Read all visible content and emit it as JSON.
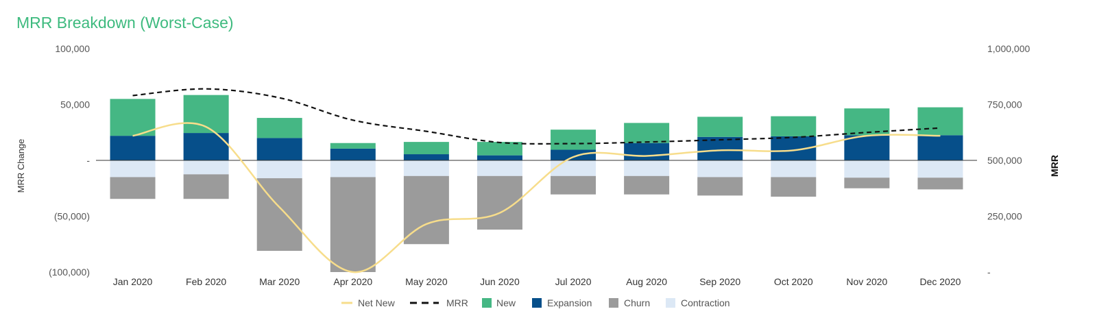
{
  "colors": {
    "title": "#3dba7e",
    "new": "#45b784",
    "expansion": "#064f8a",
    "churn": "#9b9b9b",
    "contraction": "#dce8f5",
    "net_new": "#f7dd8b",
    "mrr": "#111111",
    "axis_text": "#555555"
  },
  "chart_data": {
    "type": "bar",
    "title": "MRR Breakdown (Worst-Case)",
    "ylabel": "MRR Change",
    "y2label": "MRR",
    "ylim": [
      -100000,
      100000
    ],
    "y2lim": [
      0,
      1000000
    ],
    "y_ticks": [
      100000,
      50000,
      0,
      -50000,
      -100000
    ],
    "y_tick_labels": [
      "100,000",
      "50,000",
      "-",
      "(50,000)",
      "(100,000)"
    ],
    "y2_ticks": [
      1000000,
      750000,
      500000,
      250000,
      0
    ],
    "y2_tick_labels": [
      "1,000,000",
      "750,000",
      "500,000",
      "250,000",
      "-"
    ],
    "categories": [
      "Jan 2020",
      "Feb 2020",
      "Mar 2020",
      "Apr 2020",
      "May 2020",
      "Jun 2020",
      "Jul 2020",
      "Aug 2020",
      "Sep 2020",
      "Oct 2020",
      "Nov 2020",
      "Dec 2020"
    ],
    "legend_position": "bottom",
    "grid": false,
    "series": [
      {
        "name": "Net New",
        "type": "line",
        "axis": "y",
        "values": [
          22000,
          30000,
          -42000,
          -100000,
          -57000,
          -47000,
          3000,
          4000,
          9000,
          9000,
          22000,
          22000
        ]
      },
      {
        "name": "MRR",
        "type": "line-dashed",
        "axis": "y2",
        "values": [
          790000,
          820000,
          780000,
          680000,
          630000,
          580000,
          575000,
          582000,
          592000,
          603000,
          625000,
          645000
        ]
      },
      {
        "name": "New",
        "type": "bar-stacked",
        "axis": "y",
        "values": [
          33000,
          34000,
          18000,
          5000,
          11000,
          12000,
          18000,
          18000,
          18000,
          18000,
          24000,
          25000
        ]
      },
      {
        "name": "Expansion",
        "type": "bar-stacked",
        "axis": "y",
        "values": [
          22000,
          24500,
          20000,
          10500,
          5500,
          4500,
          9500,
          15500,
          21000,
          21500,
          22500,
          22500
        ]
      },
      {
        "name": "Churn",
        "type": "bar-stacked",
        "axis": "y",
        "values": [
          -19500,
          -22000,
          -65000,
          -85000,
          -61000,
          -48000,
          -16500,
          -16500,
          -16500,
          -17500,
          -9500,
          -10500
        ]
      },
      {
        "name": "Contraction",
        "type": "bar-stacked",
        "axis": "y",
        "values": [
          -15000,
          -12500,
          -16000,
          -15000,
          -14000,
          -14000,
          -14000,
          -14000,
          -15000,
          -15000,
          -15500,
          -15500
        ]
      }
    ]
  }
}
